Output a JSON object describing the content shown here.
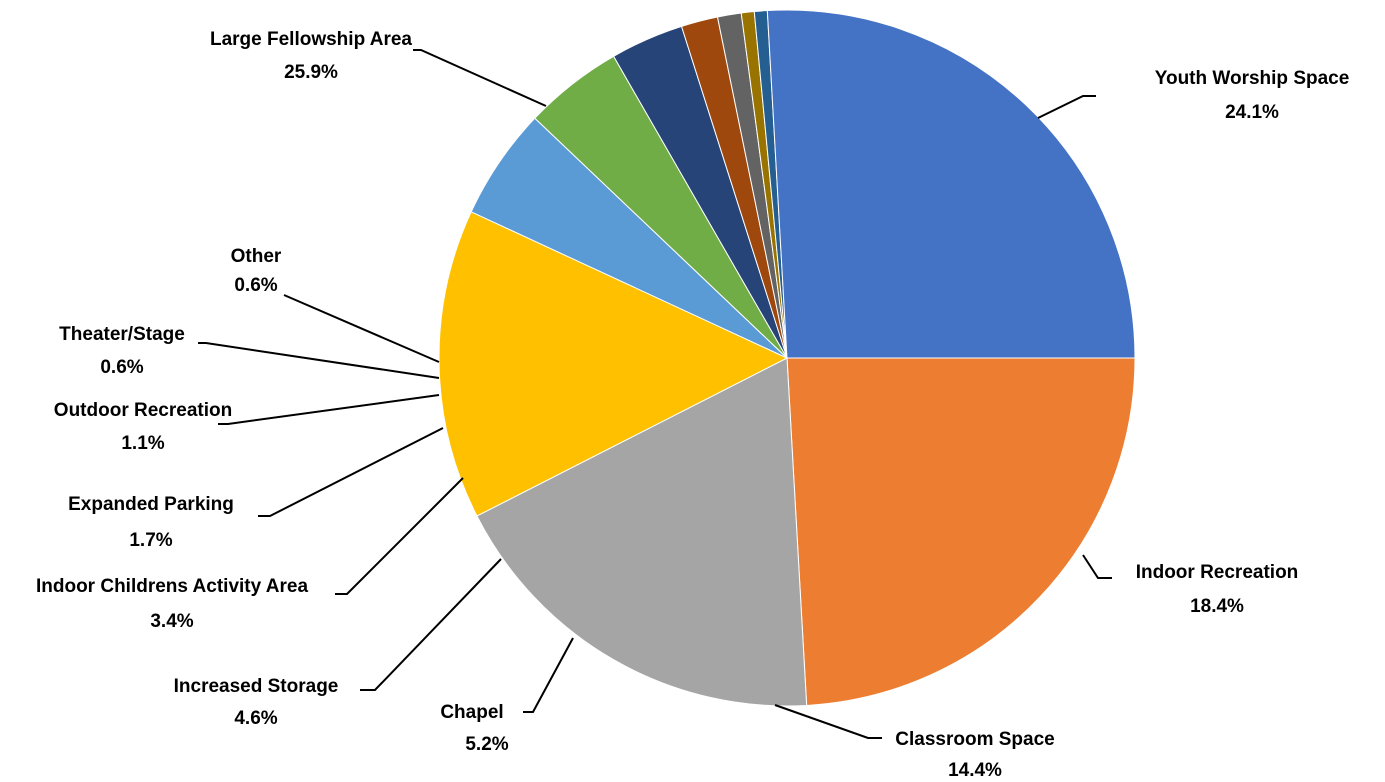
{
  "chart_data": {
    "type": "pie",
    "title": "",
    "slices": [
      {
        "name": "Youth Worship Space",
        "value": 24.1,
        "label": "24.1%",
        "color": "#ED7D31"
      },
      {
        "name": "Indoor Recreation",
        "value": 18.4,
        "label": "18.4%",
        "color": "#A5A5A5"
      },
      {
        "name": "Classroom Space",
        "value": 14.4,
        "label": "14.4%",
        "color": "#FFC000"
      },
      {
        "name": "Chapel",
        "value": 5.2,
        "label": "5.2%",
        "color": "#5B9BD5"
      },
      {
        "name": "Increased Storage",
        "value": 4.6,
        "label": "4.6%",
        "color": "#70AD47"
      },
      {
        "name": "Indoor Childrens Activity Area",
        "value": 3.4,
        "label": "3.4%",
        "color": "#264478"
      },
      {
        "name": "Expanded Parking",
        "value": 1.7,
        "label": "1.7%",
        "color": "#9E480E"
      },
      {
        "name": "Outdoor Recreation",
        "value": 1.1,
        "label": "1.1%",
        "color": "#636363"
      },
      {
        "name": "Theater/Stage",
        "value": 0.6,
        "label": "0.6%",
        "color": "#997300"
      },
      {
        "name": "Other",
        "value": 0.6,
        "label": "0.6%",
        "color": "#255E91"
      },
      {
        "name": "Large Fellowship Area",
        "value": 25.9,
        "label": "25.9%",
        "color": "#4472C4"
      }
    ],
    "start_angle_deg": 0,
    "direction": "clockwise",
    "legend": "none",
    "data_labels": "outside-with-leader-lines"
  }
}
